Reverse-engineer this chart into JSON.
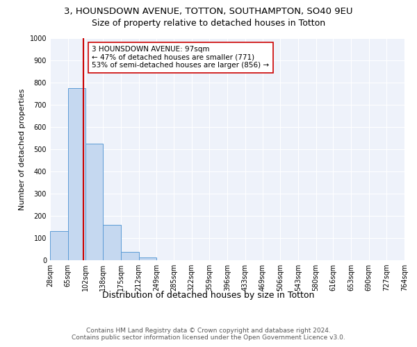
{
  "title1": "3, HOUNSDOWN AVENUE, TOTTON, SOUTHAMPTON, SO40 9EU",
  "title2": "Size of property relative to detached houses in Totton",
  "xlabel": "Distribution of detached houses by size in Totton",
  "ylabel": "Number of detached properties",
  "bin_edges": [
    28,
    65,
    102,
    138,
    175,
    212,
    249,
    285,
    322,
    359,
    396,
    433,
    469,
    506,
    543,
    580,
    616,
    653,
    690,
    727,
    764
  ],
  "bar_heights": [
    130,
    775,
    525,
    160,
    37,
    12,
    0,
    0,
    0,
    0,
    0,
    0,
    0,
    0,
    0,
    0,
    0,
    0,
    0,
    0
  ],
  "bar_color": "#c5d8f0",
  "bar_edgecolor": "#5b9bd5",
  "property_size": 97,
  "property_line_color": "#cc0000",
  "annotation_text": "3 HOUNSDOWN AVENUE: 97sqm\n← 47% of detached houses are smaller (771)\n53% of semi-detached houses are larger (856) →",
  "annotation_box_edgecolor": "#cc0000",
  "annotation_box_facecolor": "white",
  "ylim": [
    0,
    1000
  ],
  "yticks": [
    0,
    100,
    200,
    300,
    400,
    500,
    600,
    700,
    800,
    900,
    1000
  ],
  "footer1": "Contains HM Land Registry data © Crown copyright and database right 2024.",
  "footer2": "Contains public sector information licensed under the Open Government Licence v3.0.",
  "background_color": "#eef2fa",
  "grid_color": "#ffffff",
  "title1_fontsize": 9.5,
  "title2_fontsize": 9,
  "xlabel_fontsize": 9,
  "ylabel_fontsize": 8,
  "tick_fontsize": 7,
  "annotation_fontsize": 7.5,
  "footer_fontsize": 6.5
}
